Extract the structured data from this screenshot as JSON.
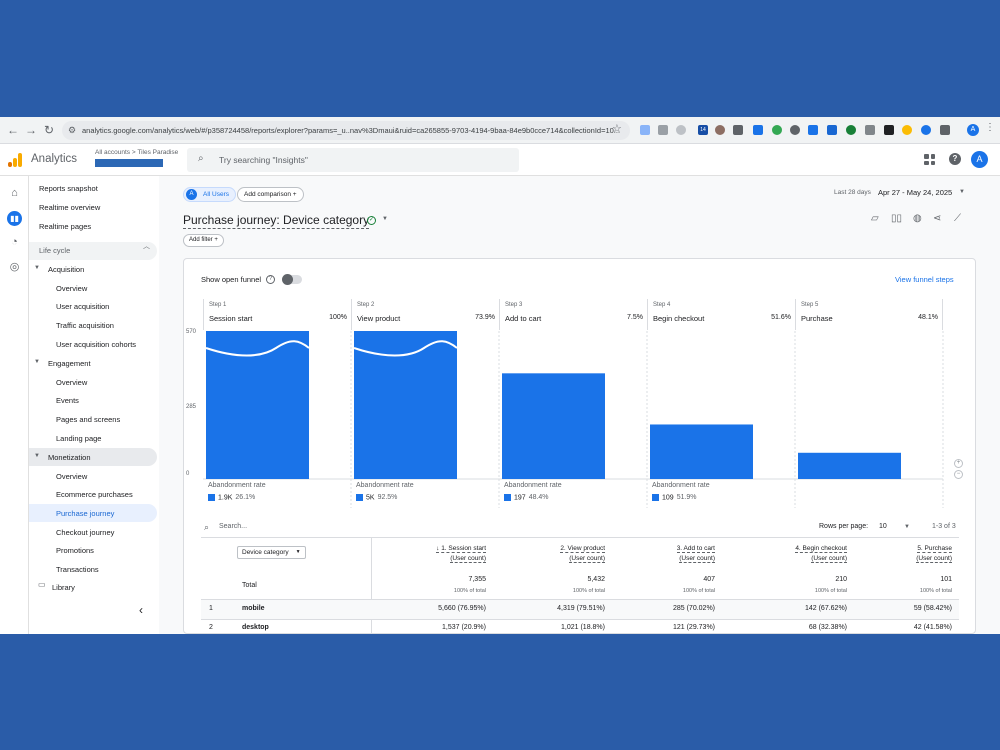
{
  "browser": {
    "url": "analytics.google.com/analytics/web/#/p358724458/reports/explorer?params=_u..nav%3Dmaui&ruid=ca265855-9703-4194-9baa-84e9b0cce714&collectionId=10...",
    "profile_initial": "A",
    "ext_badge": "14"
  },
  "header": {
    "app_name": "Analytics",
    "account_path": "All accounts > Tiles Paradise",
    "search_placeholder": "Try searching \"Insights\"",
    "user_initial": "A"
  },
  "sidebar": {
    "top_items": [
      "Reports snapshot",
      "Realtime overview",
      "Realtime pages"
    ],
    "lifecycle_label": "Life cycle",
    "acquisition": {
      "label": "Acquisition",
      "items": [
        "Overview",
        "User acquisition",
        "Traffic acquisition",
        "User acquisition cohorts"
      ]
    },
    "engagement": {
      "label": "Engagement",
      "items": [
        "Overview",
        "Events",
        "Pages and screens",
        "Landing page"
      ]
    },
    "monetization": {
      "label": "Monetization",
      "items": [
        "Overview",
        "Ecommerce purchases",
        "Purchase journey",
        "Checkout journey",
        "Promotions",
        "Transactions"
      ]
    },
    "library_label": "Library"
  },
  "toolbar": {
    "segment": "All Users",
    "segment_initial": "A",
    "add_comparison": "Add comparison",
    "date_label": "Last 28 days",
    "date_range": "Apr 27 - May 24, 2025",
    "title": "Purchase journey: Device category",
    "add_filter": "Add filter"
  },
  "funnel": {
    "show_open_funnel": "Show open funnel",
    "view_steps": "View funnel steps",
    "y_ticks": [
      "570",
      "285",
      "0"
    ],
    "steps": [
      {
        "num": "Step 1",
        "name": "Session start",
        "pct": "100%",
        "value": 7355,
        "ab_label": "Abandonment rate",
        "ab_count": "1.9K",
        "ab_pct": "26.1%"
      },
      {
        "num": "Step 2",
        "name": "View product",
        "pct": "73.9%",
        "value": 5432,
        "ab_label": "Abandonment rate",
        "ab_count": "5K",
        "ab_pct": "92.5%"
      },
      {
        "num": "Step 3",
        "name": "Add to cart",
        "pct": "7.5%",
        "value": 407,
        "ab_label": "Abandonment rate",
        "ab_count": "197",
        "ab_pct": "48.4%"
      },
      {
        "num": "Step 4",
        "name": "Begin checkout",
        "pct": "51.6%",
        "value": 210,
        "ab_label": "Abandonment rate",
        "ab_count": "109",
        "ab_pct": "51.9%"
      },
      {
        "num": "Step 5",
        "name": "Purchase",
        "pct": "48.1%",
        "value": 101
      }
    ],
    "axis_max": 570
  },
  "table": {
    "search_placeholder": "Search...",
    "rows_per_page_label": "Rows per page:",
    "rows_per_page": "10",
    "pager": "1-3 of 3",
    "dimension": "Device category",
    "columns": [
      {
        "title": "↓ 1. Session start",
        "sub": "(User count)"
      },
      {
        "title": "2. View product",
        "sub": "(User count)"
      },
      {
        "title": "3. Add to cart",
        "sub": "(User count)"
      },
      {
        "title": "4. Begin checkout",
        "sub": "(User count)"
      },
      {
        "title": "5. Purchase",
        "sub": "(User count)"
      }
    ],
    "total_label": "Total",
    "totals": [
      "7,355",
      "5,432",
      "407",
      "210",
      "101"
    ],
    "total_sub": "100% of total",
    "rows": [
      {
        "num": "1",
        "label": "mobile",
        "cells": [
          "5,660 (76.95%)",
          "4,319 (79.51%)",
          "285 (70.02%)",
          "142 (67.62%)",
          "59 (58.42%)"
        ]
      },
      {
        "num": "2",
        "label": "desktop",
        "cells": [
          "1,537 (20.9%)",
          "1,021 (18.8%)",
          "121 (29.73%)",
          "68 (32.38%)",
          "42 (41.58%)"
        ]
      }
    ]
  },
  "colors": {
    "accent": "#1a73e8",
    "frame": "#2a5ca8"
  }
}
